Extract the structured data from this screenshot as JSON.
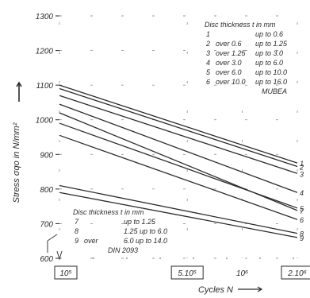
{
  "chart_data": {
    "type": "line",
    "xlabel": "Cycles N",
    "ylabel": "Stress σqo in N/mm²",
    "x_scale": "log",
    "xlim": [
      100000,
      2000000
    ],
    "ylim": [
      600,
      1300
    ],
    "x_ticks": [
      {
        "value": 100000,
        "label": "10⁵"
      },
      {
        "value": 500000,
        "label": "5.10⁵"
      },
      {
        "value": 1000000,
        "label": "10⁶"
      },
      {
        "value": 2000000,
        "label": "2.10⁶"
      }
    ],
    "y_ticks": [
      {
        "value": 1300,
        "label": "1300"
      },
      {
        "value": 1200,
        "label": "1200"
      },
      {
        "value": 1100,
        "label": "1100"
      },
      {
        "value": 1000,
        "label": "1000"
      },
      {
        "value": 900,
        "label": "900"
      },
      {
        "value": 800,
        "label": "800"
      },
      {
        "value": 700,
        "label": "700"
      },
      {
        "value": 600,
        "label": "600"
      }
    ],
    "legend_mubea": {
      "title": "Disc thickness t in mm",
      "entries": [
        {
          "num": "1",
          "from": "",
          "to": "up to  0.6"
        },
        {
          "num": "2",
          "from": "over   0.6",
          "to": "up to  1.25"
        },
        {
          "num": "3",
          "from": "over  1.25",
          "to": "up to  3.0"
        },
        {
          "num": "4",
          "from": "over   3.0",
          "to": "up to  6.0"
        },
        {
          "num": "5",
          "from": "over   6.0",
          "to": "up to 10.0"
        },
        {
          "num": "6",
          "from": "over  10.0",
          "to": "up to 16.0"
        }
      ],
      "footer": "MUBEA"
    },
    "legend_din": {
      "title": "Disc thickness t in mm",
      "entries": [
        {
          "num": "7",
          "from": "",
          "to": "up to  1.25"
        },
        {
          "num": "8",
          "from": "",
          "to": "1.25 up to  6.0"
        },
        {
          "num": "9",
          "from": "over",
          "to": "6.0  up to 14.0"
        }
      ],
      "footer": "DIN 2093"
    },
    "series": [
      {
        "label": "1",
        "x": [
          100000,
          2000000
        ],
        "y": [
          1100,
          875
        ]
      },
      {
        "label": "2",
        "x": [
          100000,
          2000000
        ],
        "y": [
          1090,
          865
        ]
      },
      {
        "label": "3",
        "x": [
          100000,
          2000000
        ],
        "y": [
          1070,
          845
        ]
      },
      {
        "label": "4",
        "x": [
          100000,
          2000000
        ],
        "y": [
          1045,
          790
        ]
      },
      {
        "label": "5",
        "x": [
          100000,
          2000000
        ],
        "y": [
          990,
          745
        ]
      },
      {
        "label": "6",
        "x": [
          100000,
          2000000
        ],
        "y": [
          955,
          712
        ]
      },
      {
        "label": "7",
        "x": [
          100000,
          2000000
        ],
        "y": [
          1020,
          738
        ]
      },
      {
        "label": "8",
        "x": [
          100000,
          2000000
        ],
        "y": [
          810,
          672
        ]
      },
      {
        "label": "9",
        "x": [
          100000,
          2000000
        ],
        "y": [
          790,
          660
        ]
      }
    ]
  }
}
